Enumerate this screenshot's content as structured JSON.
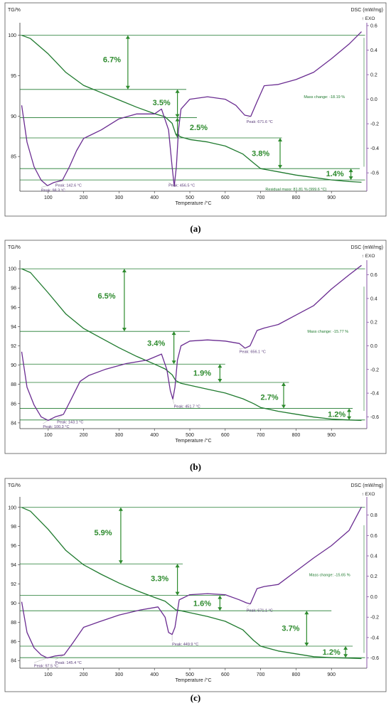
{
  "chart_data": [
    {
      "type": "line",
      "label": "(a)",
      "y_left_label": "TG/%",
      "y_right_label": "DSC (mW/mg)",
      "exo_label": "↑ EXO",
      "x_label": "Temperature /°C",
      "xlim": [
        20,
        1000
      ],
      "x_ticks": [
        100,
        200,
        300,
        400,
        500,
        600,
        700,
        800,
        900
      ],
      "y_left_lim": [
        80.7,
        101.2
      ],
      "y_left_ticks": [
        85,
        90,
        95,
        100
      ],
      "y_right_lim": [
        -0.75,
        0.6
      ],
      "y_right_ticks": [
        -0.6,
        -0.4,
        -0.2,
        0.0,
        0.2,
        0.4,
        0.6
      ],
      "series": [
        {
          "kind": "TG",
          "color": "#1f7a2e",
          "x": [
            25,
            50,
            100,
            150,
            200,
            250,
            300,
            350,
            400,
            430,
            450,
            460,
            475,
            500,
            550,
            600,
            650,
            680,
            700,
            750,
            800,
            850,
            900,
            950,
            985
          ],
          "y": [
            100,
            99.6,
            97.7,
            95.4,
            93.8,
            92.9,
            92.0,
            91.1,
            90.3,
            89.9,
            89.1,
            87.8,
            87.4,
            87.1,
            86.8,
            86.3,
            85.3,
            84.2,
            83.5,
            83.1,
            82.7,
            82.4,
            82.1,
            81.9,
            81.81
          ]
        },
        {
          "kind": "DSC",
          "color": "#6a2c91",
          "x": [
            25,
            40,
            60,
            80,
            98,
            115,
            140,
            160,
            180,
            200,
            250,
            300,
            350,
            400,
            420,
            440,
            450,
            456,
            462,
            468,
            475,
            500,
            550,
            600,
            630,
            655,
            672,
            690,
            710,
            750,
            800,
            850,
            900,
            950,
            985
          ],
          "y": [
            -0.05,
            -0.35,
            -0.55,
            -0.66,
            -0.705,
            -0.68,
            -0.66,
            -0.55,
            -0.42,
            -0.32,
            -0.25,
            -0.16,
            -0.12,
            -0.12,
            -0.08,
            -0.25,
            -0.55,
            -0.71,
            -0.55,
            -0.25,
            -0.08,
            0.0,
            0.02,
            0.0,
            -0.05,
            -0.13,
            -0.14,
            -0.02,
            0.11,
            0.12,
            0.16,
            0.22,
            0.33,
            0.45,
            0.55
          ]
        }
      ],
      "mass_steps": [
        {
          "label": "6.7%",
          "from": 100,
          "to": 93.3,
          "at_x": 325
        },
        {
          "label": "3.5%",
          "from": 93.3,
          "to": 89.8,
          "at_x": 465
        },
        {
          "label": "2.5%",
          "from": 89.8,
          "to": 87.3,
          "at_x": 465
        },
        {
          "label": "3.8%",
          "from": 87.3,
          "to": 83.5,
          "at_x": 755
        },
        {
          "label": "1.4%",
          "from": 83.5,
          "to": 82.1,
          "at_x": 955
        }
      ],
      "hlines": [
        {
          "y": 100,
          "x0": 20,
          "x1": 995
        },
        {
          "y": 93.3,
          "x0": 20,
          "x1": 490
        },
        {
          "y": 89.8,
          "x0": 20,
          "x1": 520
        },
        {
          "y": 87.3,
          "x0": 20,
          "x1": 760
        },
        {
          "y": 83.5,
          "x0": 20,
          "x1": 980
        },
        {
          "y": 82.1,
          "x0": 20,
          "x1": 995
        }
      ],
      "step_label_pos": [
        [
          280,
          97
        ],
        [
          420,
          91.7
        ],
        [
          525,
          88.6
        ],
        [
          700,
          85.4
        ],
        [
          910,
          82.9
        ]
      ],
      "peaks": [
        {
          "text": "Peak: 98.3 °C",
          "x": 98.3,
          "dsc": -0.705,
          "lx": 80,
          "ldsc": -0.73
        },
        {
          "text": "Peak: 142.6 °C",
          "x": 142.6,
          "dsc": -0.665,
          "lx": 120,
          "ldsc": -0.69
        },
        {
          "text": "Peak: 456.5 °C",
          "x": 456.5,
          "dsc": -0.71,
          "lx": 440,
          "ldsc": -0.69
        },
        {
          "text": "Peak: 671.6 °C",
          "x": 671.6,
          "dsc": -0.14,
          "lx": 660,
          "ldsc": -0.17
        }
      ],
      "notes": [
        {
          "text": "Mass change: -18.19 %",
          "x": 880,
          "dsc": 0.01
        },
        {
          "text": "Residual mass: 81.81 % (999.6 °C)",
          "x": 800,
          "dsc": -0.745
        }
      ]
    },
    {
      "type": "line",
      "label": "(b)",
      "y_left_label": "TG/%",
      "y_right_label": "DSC (mW/mg)",
      "exo_label": "↑ EXO",
      "x_label": "Temperature /°C",
      "xlim": [
        20,
        1000
      ],
      "x_ticks": [
        100,
        200,
        300,
        400,
        500,
        600,
        700,
        800,
        900
      ],
      "y_left_lim": [
        83.4,
        100.6
      ],
      "y_left_ticks": [
        84,
        86,
        88,
        90,
        92,
        94,
        96,
        98,
        100
      ],
      "y_right_lim": [
        -0.7,
        0.7
      ],
      "y_right_ticks": [
        -0.6,
        -0.4,
        -0.2,
        0.0,
        0.2,
        0.4,
        0.6
      ],
      "series": [
        {
          "kind": "TG",
          "color": "#1f7a2e",
          "x": [
            25,
            50,
            100,
            150,
            200,
            250,
            300,
            350,
            400,
            430,
            450,
            460,
            475,
            500,
            550,
            600,
            650,
            680,
            700,
            750,
            800,
            850,
            900,
            950,
            985
          ],
          "y": [
            100,
            99.6,
            97.5,
            95.3,
            93.8,
            92.8,
            91.8,
            90.9,
            90.1,
            89.6,
            89.0,
            88.4,
            88.1,
            87.9,
            87.5,
            87.1,
            86.5,
            86.0,
            85.6,
            85.2,
            84.9,
            84.6,
            84.4,
            84.3,
            84.25
          ]
        },
        {
          "kind": "DSC",
          "color": "#6a2c91",
          "x": [
            25,
            40,
            60,
            80,
            100,
            120,
            143,
            165,
            190,
            215,
            260,
            320,
            380,
            420,
            435,
            445,
            452,
            458,
            465,
            475,
            500,
            550,
            600,
            640,
            656,
            670,
            690,
            710,
            750,
            800,
            850,
            900,
            950,
            985
          ],
          "y": [
            -0.05,
            -0.35,
            -0.5,
            -0.6,
            -0.63,
            -0.6,
            -0.58,
            -0.45,
            -0.3,
            -0.25,
            -0.2,
            -0.15,
            -0.12,
            -0.07,
            -0.2,
            -0.38,
            -0.45,
            -0.35,
            -0.12,
            0.0,
            0.04,
            0.05,
            0.04,
            0.02,
            -0.02,
            0.0,
            0.13,
            0.15,
            0.18,
            0.26,
            0.34,
            0.48,
            0.6,
            0.68
          ]
        }
      ],
      "mass_steps": [
        {
          "label": "6.5%",
          "from": 100,
          "to": 93.5,
          "at_x": 315
        },
        {
          "label": "3.4%",
          "from": 93.5,
          "to": 90.1,
          "at_x": 455
        },
        {
          "label": "1.9%",
          "from": 90.1,
          "to": 88.2,
          "at_x": 585
        },
        {
          "label": "2.7%",
          "from": 88.2,
          "to": 85.5,
          "at_x": 765
        },
        {
          "label": "1.2%",
          "from": 85.5,
          "to": 84.3,
          "at_x": 950
        }
      ],
      "hlines": [
        {
          "y": 100,
          "x0": 20,
          "x1": 995
        },
        {
          "y": 93.5,
          "x0": 20,
          "x1": 500
        },
        {
          "y": 90.1,
          "x0": 20,
          "x1": 600
        },
        {
          "y": 88.2,
          "x0": 20,
          "x1": 780
        },
        {
          "y": 85.5,
          "x0": 20,
          "x1": 960
        },
        {
          "y": 84.3,
          "x0": 20,
          "x1": 995
        }
      ],
      "step_label_pos": [
        [
          265,
          97.2
        ],
        [
          405,
          92.3
        ],
        [
          535,
          89.2
        ],
        [
          725,
          86.7
        ],
        [
          915,
          84.9
        ]
      ],
      "peaks": [
        {
          "text": "Peak: 100.3 °C",
          "x": 100.3,
          "dsc": -0.63,
          "lx": 85,
          "ldsc": -0.67
        },
        {
          "text": "Peak: 143.1 °C",
          "x": 143.1,
          "dsc": -0.58,
          "lx": 125,
          "ldsc": -0.63
        },
        {
          "text": "Peak: 451.7 °C",
          "x": 451.7,
          "dsc": -0.45,
          "lx": 455,
          "ldsc": -0.5
        },
        {
          "text": "Peak: 656.1 °C",
          "x": 656.1,
          "dsc": -0.02,
          "lx": 640,
          "ldsc": -0.035
        }
      ],
      "notes": [
        {
          "text": "Mass change: -15.77 %",
          "x": 890,
          "dsc": 0.11
        }
      ]
    },
    {
      "type": "line",
      "label": "(c)",
      "y_left_label": "TG/%",
      "y_right_label": "DSC (mW/mg)",
      "exo_label": "↑ EXO",
      "x_label": "Temperature /°C",
      "xlim": [
        20,
        1000
      ],
      "x_ticks": [
        100,
        200,
        300,
        400,
        500,
        600,
        700,
        800,
        900
      ],
      "y_left_lim": [
        83.2,
        100.8
      ],
      "y_left_ticks": [
        84,
        86,
        88,
        90,
        92,
        94,
        96,
        98,
        100
      ],
      "y_right_lim": [
        -0.7,
        0.95
      ],
      "y_right_ticks": [
        -0.6,
        -0.4,
        -0.2,
        0.0,
        0.2,
        0.4,
        0.6,
        0.8
      ],
      "series": [
        {
          "kind": "TG",
          "color": "#1f7a2e",
          "x": [
            25,
            50,
            100,
            150,
            200,
            250,
            300,
            350,
            400,
            430,
            450,
            460,
            475,
            500,
            550,
            600,
            650,
            680,
            700,
            750,
            800,
            850,
            900,
            950,
            985
          ],
          "y": [
            100,
            99.6,
            97.7,
            95.5,
            94.0,
            93.0,
            92.1,
            91.3,
            90.6,
            90.2,
            89.6,
            89.3,
            89.2,
            89.0,
            88.6,
            88.1,
            87.2,
            86.1,
            85.5,
            85.0,
            84.7,
            84.4,
            84.3,
            84.25,
            84.2
          ]
        },
        {
          "kind": "DSC",
          "color": "#6a2c91",
          "x": [
            25,
            40,
            60,
            80,
            97.5,
            120,
            145,
            170,
            200,
            240,
            300,
            360,
            410,
            430,
            440,
            450,
            458,
            470,
            500,
            550,
            600,
            640,
            660,
            671,
            690,
            710,
            750,
            800,
            850,
            900,
            950,
            985
          ],
          "y": [
            -0.05,
            -0.35,
            -0.5,
            -0.57,
            -0.6,
            -0.58,
            -0.57,
            -0.45,
            -0.3,
            -0.25,
            -0.18,
            -0.13,
            -0.1,
            -0.2,
            -0.35,
            -0.37,
            -0.3,
            -0.03,
            0.02,
            0.03,
            0.02,
            -0.03,
            -0.06,
            -0.07,
            0.08,
            0.1,
            0.12,
            0.25,
            0.38,
            0.5,
            0.65,
            0.88
          ]
        }
      ],
      "mass_steps": [
        {
          "label": "5.9%",
          "from": 100,
          "to": 94.1,
          "at_x": 305
        },
        {
          "label": "3.3%",
          "from": 94.1,
          "to": 90.8,
          "at_x": 465
        },
        {
          "label": "1.6%",
          "from": 90.8,
          "to": 89.2,
          "at_x": 585
        },
        {
          "label": "3.7%",
          "from": 89.2,
          "to": 85.5,
          "at_x": 830
        },
        {
          "label": "1.2%",
          "from": 85.5,
          "to": 84.3,
          "at_x": 940
        }
      ],
      "hlines": [
        {
          "y": 100,
          "x0": 20,
          "x1": 995
        },
        {
          "y": 94.1,
          "x0": 20,
          "x1": 480
        },
        {
          "y": 90.8,
          "x0": 20,
          "x1": 600
        },
        {
          "y": 89.2,
          "x0": 20,
          "x1": 900
        },
        {
          "y": 85.5,
          "x0": 20,
          "x1": 960
        },
        {
          "y": 84.3,
          "x0": 20,
          "x1": 995
        }
      ],
      "step_label_pos": [
        [
          255,
          97.4
        ],
        [
          415,
          92.6
        ],
        [
          535,
          90.0
        ],
        [
          785,
          87.4
        ],
        [
          900,
          84.9
        ]
      ],
      "peaks": [
        {
          "text": "Peak: 97.5 °C",
          "x": 97.5,
          "dsc": -0.6,
          "lx": 60,
          "ldsc": -0.66
        },
        {
          "text": "Peak: 145.4 °C",
          "x": 145.4,
          "dsc": -0.57,
          "lx": 120,
          "ldsc": -0.63
        },
        {
          "text": "Peak: 449.9 °C",
          "x": 449.9,
          "dsc": -0.37,
          "lx": 450,
          "ldsc": -0.45
        },
        {
          "text": "Peak: 671.1 °C",
          "x": 671.1,
          "dsc": -0.07,
          "lx": 660,
          "ldsc": -0.12
        }
      ],
      "notes": [
        {
          "text": "Mass change: -15.65 %",
          "x": 895,
          "dsc": 0.2
        }
      ]
    }
  ]
}
